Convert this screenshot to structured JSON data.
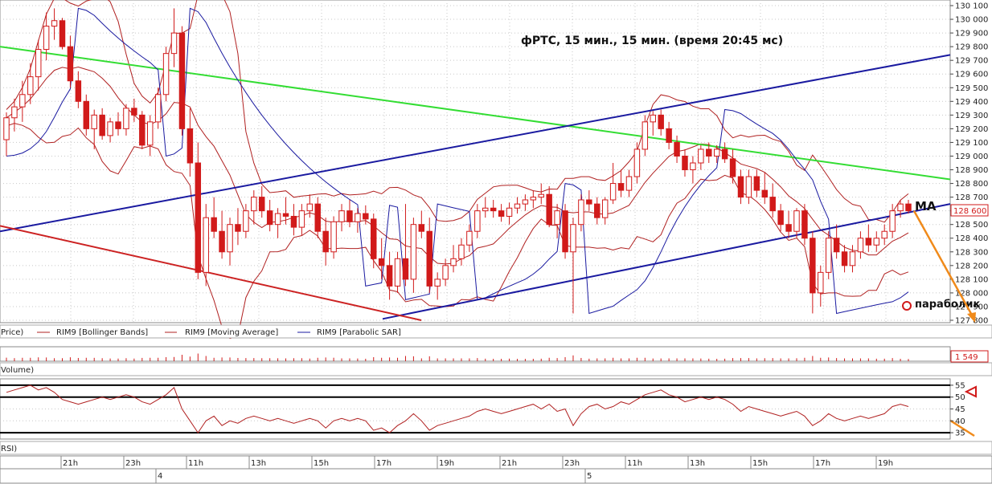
{
  "chart_data": {
    "type": "candlestick",
    "title": "фРТС,  15 мин., 15 мин.  (время 20:45 мс)",
    "colors": {
      "up": "#d11a1a",
      "down": "#d11a1a",
      "bollinger": "#b02020",
      "ma": "#b02020",
      "sar": "#1a1aa0",
      "trend_blue": "#1a1aa0",
      "trend_green": "#33dd33",
      "trend_red": "#cc2222",
      "forecast": "#f08a1a",
      "grid": "#c8c8c8"
    },
    "price_axis": {
      "min": 127800,
      "max": 130100,
      "ticks": [
        "130 100",
        "130 000",
        "129 900",
        "129 800",
        "129 700",
        "129 600",
        "129 500",
        "129 400",
        "129 300",
        "129 200",
        "129 100",
        "129 000",
        "128 900",
        "128 800",
        "128 700",
        "128 600",
        "128 500",
        "128 400",
        "128 300",
        "128 200",
        "128 100",
        "128 000",
        "127 900",
        "127 800"
      ]
    },
    "last_price_label": "128 600",
    "volume_label": "1 549",
    "legend": [
      "Price)",
      "RIM9 [Bollinger Bands]",
      "RIM9 [Moving Average]",
      "RIM9 [Parabolic SAR]"
    ],
    "volume_title": "Volume)",
    "rsi_title": "RSI)",
    "rsi_axis": {
      "min": 33,
      "max": 57,
      "ticks": [
        "55",
        "50",
        "45",
        "40",
        "35"
      ]
    },
    "time_ticks": [
      "21h",
      "23h",
      "11h",
      "13h",
      "15h",
      "17h",
      "19h",
      "21h",
      "23h",
      "11h",
      "13h",
      "15h",
      "17h",
      "19h"
    ],
    "date_labels": [
      "4",
      "5"
    ],
    "annotations": {
      "ma": "MA",
      "parabolic": "параболик"
    },
    "candles": [
      {
        "o": 129120,
        "h": 129320,
        "l": 129000,
        "c": 129280
      },
      {
        "o": 129280,
        "h": 129420,
        "l": 129180,
        "c": 129360
      },
      {
        "o": 129360,
        "h": 129550,
        "l": 129250,
        "c": 129450
      },
      {
        "o": 129450,
        "h": 129680,
        "l": 129380,
        "c": 129580
      },
      {
        "o": 129580,
        "h": 129850,
        "l": 129480,
        "c": 129780
      },
      {
        "o": 129780,
        "h": 130050,
        "l": 129700,
        "c": 129950
      },
      {
        "o": 129950,
        "h": 130080,
        "l": 129850,
        "c": 129990
      },
      {
        "o": 129990,
        "h": 130010,
        "l": 129780,
        "c": 129800
      },
      {
        "o": 129800,
        "h": 129880,
        "l": 129500,
        "c": 129550
      },
      {
        "o": 129550,
        "h": 129620,
        "l": 129350,
        "c": 129400
      },
      {
        "o": 129400,
        "h": 129450,
        "l": 129150,
        "c": 129200
      },
      {
        "o": 129200,
        "h": 129340,
        "l": 129050,
        "c": 129300
      },
      {
        "o": 129300,
        "h": 129350,
        "l": 129120,
        "c": 129150
      },
      {
        "o": 129150,
        "h": 129280,
        "l": 129100,
        "c": 129250
      },
      {
        "o": 129250,
        "h": 129320,
        "l": 129150,
        "c": 129200
      },
      {
        "o": 129200,
        "h": 129380,
        "l": 129150,
        "c": 129350
      },
      {
        "o": 129350,
        "h": 129420,
        "l": 129250,
        "c": 129300
      },
      {
        "o": 129300,
        "h": 129330,
        "l": 129050,
        "c": 129080
      },
      {
        "o": 129080,
        "h": 129300,
        "l": 129000,
        "c": 129250
      },
      {
        "o": 129250,
        "h": 129500,
        "l": 129200,
        "c": 129450
      },
      {
        "o": 129450,
        "h": 129800,
        "l": 129400,
        "c": 129750
      },
      {
        "o": 129750,
        "h": 130080,
        "l": 129650,
        "c": 129900
      },
      {
        "o": 129900,
        "h": 129950,
        "l": 129150,
        "c": 129200
      },
      {
        "o": 129200,
        "h": 129350,
        "l": 128850,
        "c": 128950
      },
      {
        "o": 128950,
        "h": 129100,
        "l": 128100,
        "c": 128150
      },
      {
        "o": 128150,
        "h": 128650,
        "l": 128050,
        "c": 128550
      },
      {
        "o": 128550,
        "h": 128700,
        "l": 128400,
        "c": 128450
      },
      {
        "o": 128450,
        "h": 128600,
        "l": 128250,
        "c": 128300
      },
      {
        "o": 128300,
        "h": 128550,
        "l": 128200,
        "c": 128500
      },
      {
        "o": 128500,
        "h": 128620,
        "l": 128350,
        "c": 128450
      },
      {
        "o": 128450,
        "h": 128650,
        "l": 128400,
        "c": 128600
      },
      {
        "o": 128600,
        "h": 128750,
        "l": 128500,
        "c": 128700
      },
      {
        "o": 128700,
        "h": 128780,
        "l": 128550,
        "c": 128600
      },
      {
        "o": 128600,
        "h": 128680,
        "l": 128450,
        "c": 128500
      },
      {
        "o": 128500,
        "h": 128620,
        "l": 128400,
        "c": 128580
      },
      {
        "o": 128580,
        "h": 128700,
        "l": 128500,
        "c": 128560
      },
      {
        "o": 128560,
        "h": 128650,
        "l": 128420,
        "c": 128480
      },
      {
        "o": 128480,
        "h": 128650,
        "l": 128420,
        "c": 128600
      },
      {
        "o": 128600,
        "h": 128720,
        "l": 128550,
        "c": 128650
      },
      {
        "o": 128650,
        "h": 128700,
        "l": 128400,
        "c": 128450
      },
      {
        "o": 128450,
        "h": 128550,
        "l": 128200,
        "c": 128300
      },
      {
        "o": 128300,
        "h": 128560,
        "l": 128250,
        "c": 128520
      },
      {
        "o": 128520,
        "h": 128650,
        "l": 128450,
        "c": 128600
      },
      {
        "o": 128600,
        "h": 128680,
        "l": 128480,
        "c": 128520
      },
      {
        "o": 128520,
        "h": 128620,
        "l": 128440,
        "c": 128580
      },
      {
        "o": 128580,
        "h": 128640,
        "l": 128500,
        "c": 128540
      },
      {
        "o": 128540,
        "h": 128580,
        "l": 128180,
        "c": 128250
      },
      {
        "o": 128250,
        "h": 128400,
        "l": 128100,
        "c": 128200
      },
      {
        "o": 128200,
        "h": 128300,
        "l": 127950,
        "c": 128050
      },
      {
        "o": 128050,
        "h": 128300,
        "l": 128000,
        "c": 128250
      },
      {
        "o": 128250,
        "h": 128650,
        "l": 128050,
        "c": 128100
      },
      {
        "o": 128100,
        "h": 128550,
        "l": 128000,
        "c": 128500
      },
      {
        "o": 128500,
        "h": 128600,
        "l": 128400,
        "c": 128450
      },
      {
        "o": 128450,
        "h": 128550,
        "l": 128000,
        "c": 128050
      },
      {
        "o": 128050,
        "h": 128150,
        "l": 127950,
        "c": 128100
      },
      {
        "o": 128100,
        "h": 128250,
        "l": 128050,
        "c": 128200
      },
      {
        "o": 128200,
        "h": 128350,
        "l": 128150,
        "c": 128250
      },
      {
        "o": 128250,
        "h": 128400,
        "l": 128200,
        "c": 128350
      },
      {
        "o": 128350,
        "h": 128500,
        "l": 128300,
        "c": 128450
      },
      {
        "o": 128450,
        "h": 128650,
        "l": 128400,
        "c": 128600
      },
      {
        "o": 128600,
        "h": 128700,
        "l": 128550,
        "c": 128620
      },
      {
        "o": 128620,
        "h": 128680,
        "l": 128550,
        "c": 128600
      },
      {
        "o": 128600,
        "h": 128650,
        "l": 128520,
        "c": 128560
      },
      {
        "o": 128560,
        "h": 128660,
        "l": 128500,
        "c": 128620
      },
      {
        "o": 128620,
        "h": 128700,
        "l": 128580,
        "c": 128650
      },
      {
        "o": 128650,
        "h": 128720,
        "l": 128600,
        "c": 128680
      },
      {
        "o": 128680,
        "h": 128750,
        "l": 128620,
        "c": 128700
      },
      {
        "o": 128700,
        "h": 128800,
        "l": 128650,
        "c": 128720
      },
      {
        "o": 128720,
        "h": 128780,
        "l": 128480,
        "c": 128500
      },
      {
        "o": 128500,
        "h": 128650,
        "l": 128400,
        "c": 128600
      },
      {
        "o": 128600,
        "h": 128650,
        "l": 128250,
        "c": 128300
      },
      {
        "o": 128300,
        "h": 128550,
        "l": 127850,
        "c": 128500
      },
      {
        "o": 128500,
        "h": 128720,
        "l": 128450,
        "c": 128680
      },
      {
        "o": 128680,
        "h": 128750,
        "l": 128600,
        "c": 128650
      },
      {
        "o": 128650,
        "h": 128700,
        "l": 128500,
        "c": 128550
      },
      {
        "o": 128550,
        "h": 128700,
        "l": 128500,
        "c": 128680
      },
      {
        "o": 128680,
        "h": 128950,
        "l": 128650,
        "c": 128800
      },
      {
        "o": 128800,
        "h": 128900,
        "l": 128700,
        "c": 128750
      },
      {
        "o": 128750,
        "h": 128900,
        "l": 128700,
        "c": 128850
      },
      {
        "o": 128850,
        "h": 129100,
        "l": 128800,
        "c": 129050
      },
      {
        "o": 129050,
        "h": 129300,
        "l": 129000,
        "c": 129250
      },
      {
        "o": 129250,
        "h": 129330,
        "l": 129150,
        "c": 129300
      },
      {
        "o": 129300,
        "h": 129340,
        "l": 129150,
        "c": 129200
      },
      {
        "o": 129200,
        "h": 129250,
        "l": 129050,
        "c": 129100
      },
      {
        "o": 129100,
        "h": 129150,
        "l": 128950,
        "c": 129000
      },
      {
        "o": 129000,
        "h": 129050,
        "l": 128850,
        "c": 128900
      },
      {
        "o": 128900,
        "h": 129000,
        "l": 128800,
        "c": 128950
      },
      {
        "o": 128950,
        "h": 129080,
        "l": 128900,
        "c": 129050
      },
      {
        "o": 129050,
        "h": 129100,
        "l": 128950,
        "c": 129000
      },
      {
        "o": 129000,
        "h": 129080,
        "l": 128950,
        "c": 129050
      },
      {
        "o": 129050,
        "h": 129100,
        "l": 128950,
        "c": 128980
      },
      {
        "o": 128980,
        "h": 129050,
        "l": 128800,
        "c": 128850
      },
      {
        "o": 128850,
        "h": 128900,
        "l": 128650,
        "c": 128700
      },
      {
        "o": 128700,
        "h": 128900,
        "l": 128650,
        "c": 128850
      },
      {
        "o": 128850,
        "h": 128900,
        "l": 128700,
        "c": 128750
      },
      {
        "o": 128750,
        "h": 128880,
        "l": 128650,
        "c": 128700
      },
      {
        "o": 128700,
        "h": 128800,
        "l": 128550,
        "c": 128600
      },
      {
        "o": 128600,
        "h": 128650,
        "l": 128450,
        "c": 128500
      },
      {
        "o": 128500,
        "h": 128600,
        "l": 128400,
        "c": 128450
      },
      {
        "o": 128450,
        "h": 128620,
        "l": 128400,
        "c": 128600
      },
      {
        "o": 128600,
        "h": 128650,
        "l": 128350,
        "c": 128400
      },
      {
        "o": 128400,
        "h": 128450,
        "l": 127850,
        "c": 128000
      },
      {
        "o": 128000,
        "h": 128200,
        "l": 127900,
        "c": 128150
      },
      {
        "o": 128150,
        "h": 128450,
        "l": 128100,
        "c": 128400
      },
      {
        "o": 128400,
        "h": 128500,
        "l": 128250,
        "c": 128300
      },
      {
        "o": 128300,
        "h": 128350,
        "l": 128150,
        "c": 128200
      },
      {
        "o": 128200,
        "h": 128350,
        "l": 128150,
        "c": 128300
      },
      {
        "o": 128300,
        "h": 128450,
        "l": 128250,
        "c": 128400
      },
      {
        "o": 128400,
        "h": 128500,
        "l": 128300,
        "c": 128350
      },
      {
        "o": 128350,
        "h": 128450,
        "l": 128300,
        "c": 128400
      },
      {
        "o": 128400,
        "h": 128500,
        "l": 128350,
        "c": 128450
      },
      {
        "o": 128450,
        "h": 128650,
        "l": 128400,
        "c": 128600
      },
      {
        "o": 128600,
        "h": 128680,
        "l": 128550,
        "c": 128650
      },
      {
        "o": 128650,
        "h": 128680,
        "l": 128580,
        "c": 128600
      }
    ],
    "rsi": [
      52,
      53,
      54,
      55,
      53,
      54,
      52,
      49,
      48,
      47,
      48,
      49,
      50,
      49,
      50,
      51,
      50,
      48,
      47,
      49,
      51,
      54,
      45,
      40,
      35,
      40,
      42,
      38,
      40,
      39,
      41,
      42,
      41,
      40,
      41,
      40,
      39,
      40,
      41,
      40,
      37,
      40,
      41,
      40,
      41,
      40,
      36,
      37,
      35,
      38,
      40,
      43,
      40,
      36,
      38,
      39,
      40,
      41,
      42,
      44,
      45,
      44,
      43,
      44,
      45,
      46,
      47,
      45,
      47,
      44,
      45,
      38,
      43,
      46,
      47,
      45,
      46,
      48,
      47,
      49,
      51,
      52,
      53,
      51,
      50,
      48,
      49,
      50,
      49,
      50,
      49,
      47,
      44,
      46,
      45,
      44,
      43,
      42,
      43,
      44,
      42,
      38,
      40,
      43,
      41,
      40,
      41,
      42,
      41,
      42,
      43,
      46,
      47,
      46
    ],
    "trend_lines": {
      "green_top": [
        [
          0,
          129800
        ],
        [
          1182,
          128830
        ]
      ],
      "blue_upper": [
        [
          0,
          128450
        ],
        [
          1182,
          129740
        ]
      ],
      "blue_lower": [
        [
          476,
          127810
        ],
        [
          1182,
          128650
        ]
      ],
      "red_lower": [
        [
          0,
          128490
        ],
        [
          524,
          127800
        ]
      ]
    }
  }
}
